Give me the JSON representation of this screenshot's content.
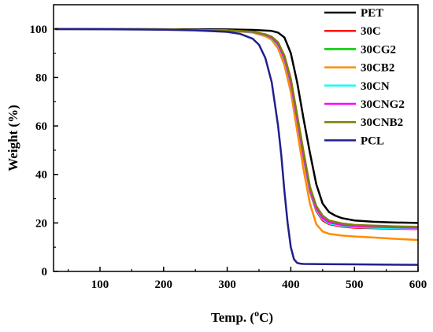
{
  "chart_data": {
    "type": "line",
    "xlabel": "Temp. (°C)",
    "ylabel": "Weight (%)",
    "xlim": [
      27,
      600
    ],
    "ylim": [
      0,
      110
    ],
    "xticks": [
      "100",
      "200",
      "300",
      "400",
      "500",
      "600"
    ],
    "yticks": [
      "0",
      "20",
      "40",
      "60",
      "80",
      "100"
    ],
    "legend_placement": "top-right",
    "series": [
      {
        "name": "PET",
        "color": "#000000",
        "x": [
          30,
          100,
          200,
          300,
          340,
          370,
          380,
          390,
          400,
          410,
          420,
          430,
          440,
          450,
          460,
          470,
          480,
          500,
          530,
          560,
          600
        ],
        "y": [
          100,
          100,
          99.9,
          99.8,
          99.6,
          99.2,
          98.5,
          96.5,
          90,
          78,
          63,
          49,
          36,
          28,
          24.5,
          23,
          22,
          21,
          20.5,
          20.2,
          20
        ]
      },
      {
        "name": "30C",
        "color": "#ff0000",
        "x": [
          30,
          100,
          200,
          300,
          340,
          360,
          370,
          380,
          390,
          400,
          410,
          420,
          430,
          440,
          450,
          460,
          480,
          500,
          530,
          560,
          600
        ],
        "y": [
          100,
          100,
          99.8,
          99.4,
          98.8,
          97.5,
          96,
          93,
          87,
          77,
          62,
          47,
          33,
          25,
          21,
          19.5,
          18.5,
          18,
          17.8,
          17.6,
          17.5
        ]
      },
      {
        "name": "30CG2",
        "color": "#00cc00",
        "x": [
          30,
          100,
          200,
          300,
          340,
          360,
          370,
          380,
          390,
          400,
          410,
          420,
          430,
          440,
          450,
          460,
          480,
          500,
          530,
          560,
          600
        ],
        "y": [
          100,
          100,
          99.8,
          99.4,
          98.7,
          97.5,
          96.5,
          94,
          88,
          78,
          63,
          48,
          34,
          26,
          22,
          20,
          19,
          18.5,
          18.2,
          18,
          17.8
        ]
      },
      {
        "name": "30CB2",
        "color": "#ff8c00",
        "x": [
          30,
          100,
          200,
          300,
          340,
          360,
          370,
          380,
          390,
          400,
          410,
          420,
          430,
          440,
          450,
          460,
          480,
          500,
          530,
          560,
          600
        ],
        "y": [
          100,
          100,
          99.8,
          99.3,
          98.5,
          97,
          95.5,
          92,
          85,
          74,
          58,
          42,
          28,
          19.5,
          16.5,
          15.5,
          14.8,
          14.4,
          14,
          13.5,
          13
        ]
      },
      {
        "name": "30CN",
        "color": "#00ffff",
        "x": [
          30,
          100,
          200,
          300,
          340,
          360,
          370,
          380,
          390,
          400,
          410,
          420,
          430,
          440,
          450,
          460,
          480,
          500,
          530,
          560,
          600
        ],
        "y": [
          100,
          100,
          99.8,
          99.4,
          98.7,
          97.5,
          96.2,
          93.5,
          87.5,
          77.5,
          62.5,
          47.5,
          33.5,
          25.5,
          21.5,
          19.8,
          18.8,
          18.3,
          18,
          17.8,
          17.7
        ]
      },
      {
        "name": "30CNG2",
        "color": "#ff00ff",
        "x": [
          30,
          100,
          200,
          300,
          340,
          360,
          370,
          380,
          390,
          400,
          410,
          420,
          430,
          440,
          450,
          460,
          480,
          500,
          530,
          560,
          600
        ],
        "y": [
          100,
          100,
          99.8,
          99.4,
          98.8,
          97.6,
          96.4,
          93.8,
          88,
          78,
          63,
          48,
          34,
          26,
          22,
          20.2,
          19.2,
          18.7,
          18.4,
          18.2,
          18
        ]
      },
      {
        "name": "30CNB2",
        "color": "#808000",
        "x": [
          30,
          100,
          200,
          300,
          340,
          360,
          370,
          380,
          390,
          400,
          410,
          420,
          430,
          440,
          450,
          460,
          480,
          500,
          530,
          560,
          600
        ],
        "y": [
          100,
          100,
          99.8,
          99.4,
          98.9,
          97.8,
          96.8,
          94.5,
          89,
          79.5,
          64.5,
          49.5,
          35,
          27,
          23,
          21,
          19.8,
          19.2,
          18.9,
          18.6,
          18.4
        ]
      },
      {
        "name": "PCL",
        "color": "#1f1f8f",
        "x": [
          30,
          100,
          200,
          250,
          300,
          320,
          340,
          350,
          360,
          370,
          380,
          385,
          390,
          395,
          400,
          405,
          410,
          415,
          420,
          450,
          500,
          550,
          600
        ],
        "y": [
          100,
          99.9,
          99.7,
          99.4,
          98.8,
          98,
          96,
          93.5,
          88,
          78,
          60,
          48,
          33,
          20,
          10,
          5,
          3.5,
          3.2,
          3.1,
          3,
          2.9,
          2.8,
          2.7
        ]
      }
    ]
  }
}
